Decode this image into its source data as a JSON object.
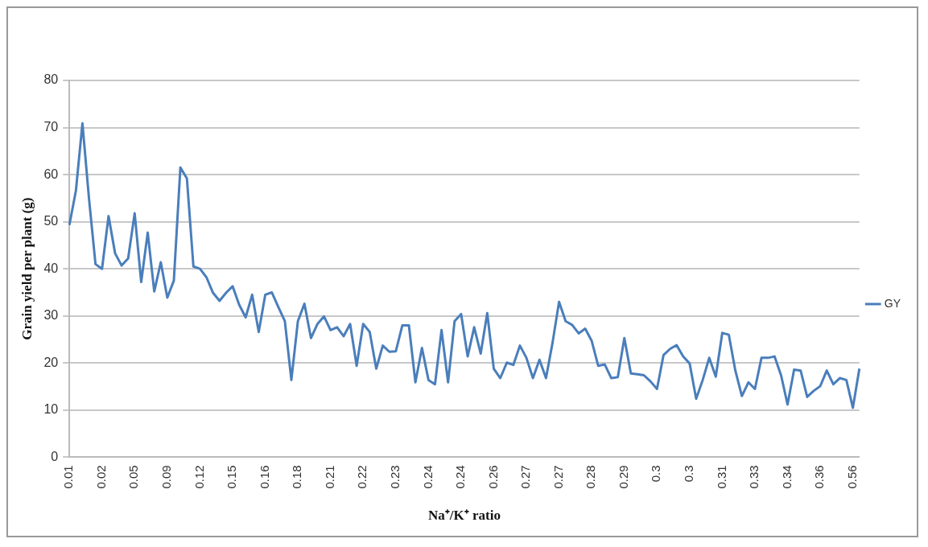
{
  "chart_data": {
    "type": "line",
    "xlabel": "Na⁺/K⁺ ratio",
    "ylabel": "Grain yield per plant (g)",
    "categories": [
      "0.01",
      null,
      null,
      null,
      null,
      "0.02",
      null,
      null,
      null,
      null,
      "0.05",
      null,
      null,
      null,
      null,
      "0.09",
      null,
      null,
      null,
      null,
      "0.12",
      null,
      null,
      null,
      null,
      "0.15",
      null,
      null,
      null,
      null,
      "0.16",
      null,
      null,
      null,
      null,
      "0.18",
      null,
      null,
      null,
      null,
      "0.21",
      null,
      null,
      null,
      null,
      "0.22",
      null,
      null,
      null,
      null,
      "0.23",
      null,
      null,
      null,
      null,
      "0.24",
      null,
      null,
      null,
      null,
      "0.24",
      null,
      null,
      null,
      null,
      "0.26",
      null,
      null,
      null,
      null,
      "0.27",
      null,
      null,
      null,
      null,
      "0.27",
      null,
      null,
      null,
      null,
      "0.28",
      null,
      null,
      null,
      null,
      "0.29",
      null,
      null,
      null,
      null,
      "0.3",
      null,
      null,
      null,
      null,
      "0.3",
      null,
      null,
      null,
      null,
      "0.31",
      null,
      null,
      null,
      null,
      "0.33",
      null,
      null,
      null,
      null,
      "0.34",
      null,
      null,
      null,
      null,
      "0.36",
      null,
      null,
      null,
      null,
      "0.56",
      null
    ],
    "series": [
      {
        "name": "GY",
        "color": "#4a7ebb",
        "values": [
          49.3,
          56.6,
          70.9,
          55,
          41,
          40,
          51.2,
          43.3,
          40.7,
          42.2,
          51.8,
          37.2,
          47.7,
          35.2,
          41.4,
          33.9,
          37.5,
          61.5,
          59.2,
          40.5,
          40,
          38.2,
          34.9,
          33.2,
          34.9,
          36.3,
          32.4,
          29.7,
          34.5,
          26.6,
          34.5,
          35,
          31.9,
          28.9,
          16.4,
          28.9,
          32.6,
          25.3,
          28.3,
          29.9,
          27,
          27.6,
          25.7,
          28.3,
          19.4,
          28.3,
          26.6,
          18.8,
          23.7,
          22.4,
          22.5,
          28,
          28,
          15.9,
          23.2,
          16.4,
          15.5,
          27,
          15.9,
          28.9,
          30.4,
          21.4,
          27.6,
          22,
          30.6,
          18.8,
          16.8,
          20.1,
          19.6,
          23.7,
          21.1,
          16.8,
          20.7,
          16.8,
          24.3,
          33,
          28.9,
          28.1,
          26.3,
          27.3,
          24.7,
          19.4,
          19.7,
          16.8,
          17,
          25.3,
          17.8,
          17.6,
          17.4,
          16.1,
          14.5,
          21.7,
          23,
          23.8,
          21.4,
          19.9,
          12.4,
          16.4,
          21.1,
          17.1,
          26.4,
          26,
          18.4,
          13,
          15.9,
          14.5,
          21.1,
          21.1,
          21.4,
          17.4,
          11.2,
          18.6,
          18.4,
          12.8,
          14.1,
          15.1,
          18.4,
          15.5,
          16.8,
          16.4,
          10.5,
          18.8
        ]
      }
    ],
    "ylim": [
      0,
      80
    ],
    "yticks": [
      0,
      10,
      20,
      30,
      40,
      50,
      60,
      70,
      80
    ],
    "grid": "y",
    "legend": "right",
    "marker": "none",
    "line_style": "solid"
  }
}
